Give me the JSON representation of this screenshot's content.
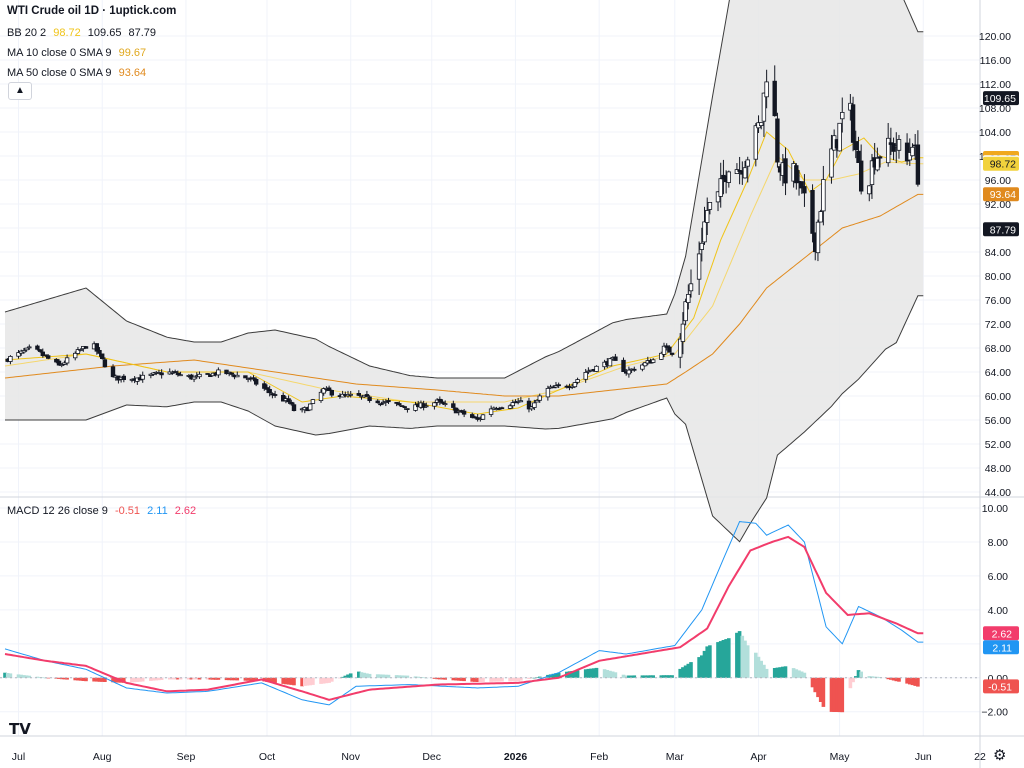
{
  "header": {
    "title": "WTI Crude oil  1D · 1uptick.com",
    "bb": {
      "label": "BB 20 2",
      "basis": "98.72",
      "upper": "109.65",
      "lower": "87.79"
    },
    "ma10": {
      "label": "MA 10 close 0 SMA 9",
      "value": "99.67"
    },
    "ma50": {
      "label": "MA 50 close 0 SMA 9",
      "value": "93.64"
    },
    "collapse_icon": "chevron-up-icon"
  },
  "macd_header": {
    "label": "MACD 12 26 close 9",
    "hist": "-0.51",
    "macd": "2.11",
    "signal": "2.62"
  },
  "colors": {
    "up": "#ffffff",
    "down": "#131722",
    "bb_fill": "#e6e6e6",
    "bb_line": "#3c3c3c",
    "ma10": "#f0c419",
    "ma50": "#e08a1e",
    "macd": "#2196f3",
    "signal": "#f23c6b",
    "hist_up_strong": "#26a69a",
    "hist_up_weak": "#b2dfdb",
    "hist_down_strong": "#ef5350",
    "hist_down_weak": "#ffcdd2"
  },
  "logo": "TV",
  "settings_icon": "gear-icon",
  "chart_data": [
    {
      "type": "candlestick",
      "title": "WTI Crude oil  1D · 1uptick.com",
      "ylim": [
        44,
        120
      ],
      "yticks": [
        "120.00",
        "116.00",
        "112.00",
        "108.00",
        "104.00",
        "100.00",
        "96.00",
        "92.00",
        "88.00",
        "84.00",
        "80.00",
        "76.00",
        "72.00",
        "68.00",
        "64.00",
        "60.00",
        "56.00",
        "52.00",
        "48.00",
        "44.00"
      ],
      "price_tags": [
        {
          "value": 109.65,
          "text": "109.65",
          "bg": "#131722",
          "fg": "#ffffff"
        },
        {
          "value": 99.67,
          "text": "99.67",
          "bg": "#f0a81e",
          "fg": "#131722"
        },
        {
          "value": 98.95,
          "text": "98.95",
          "bg": "#ffffff",
          "fg": "#131722"
        },
        {
          "value": 98.72,
          "text": "98.72",
          "bg": "#f2d23c",
          "fg": "#131722"
        },
        {
          "value": 93.64,
          "text": "93.64",
          "bg": "#e08a1e",
          "fg": "#ffffff"
        },
        {
          "value": 87.79,
          "text": "87.79",
          "bg": "#131722",
          "fg": "#ffffff"
        }
      ],
      "xticks": [
        {
          "label": "Jul",
          "day": 5
        },
        {
          "label": "Aug",
          "day": 36
        },
        {
          "label": "Sep",
          "day": 67
        },
        {
          "label": "Oct",
          "day": 97
        },
        {
          "label": "Nov",
          "day": 128
        },
        {
          "label": "Dec",
          "day": 158
        },
        {
          "label": "2026",
          "day": 189
        },
        {
          "label": "Feb",
          "day": 220
        },
        {
          "label": "Mar",
          "day": 248
        },
        {
          "label": "Apr",
          "day": 279
        },
        {
          "label": "May",
          "day": 309
        },
        {
          "label": "Jun",
          "day": 340
        },
        {
          "label": "22",
          "day": 361
        }
      ],
      "close_anchors": [
        [
          0,
          66
        ],
        [
          10,
          68
        ],
        [
          20,
          65
        ],
        [
          32,
          69
        ],
        [
          40,
          63
        ],
        [
          50,
          63
        ],
        [
          60,
          64
        ],
        [
          70,
          63
        ],
        [
          80,
          64
        ],
        [
          90,
          63
        ],
        [
          100,
          60
        ],
        [
          105,
          59
        ],
        [
          108,
          57
        ],
        [
          112,
          58
        ],
        [
          118,
          61
        ],
        [
          125,
          60
        ],
        [
          130,
          60
        ],
        [
          140,
          59
        ],
        [
          150,
          58
        ],
        [
          160,
          59
        ],
        [
          170,
          57
        ],
        [
          175,
          56
        ],
        [
          180,
          58
        ],
        [
          190,
          59
        ],
        [
          195,
          58
        ],
        [
          200,
          61
        ],
        [
          210,
          62
        ],
        [
          215,
          64
        ],
        [
          220,
          65
        ],
        [
          225,
          66
        ],
        [
          230,
          64
        ],
        [
          240,
          66
        ],
        [
          244,
          68
        ],
        [
          248,
          67
        ],
        [
          252,
          75
        ],
        [
          256,
          82
        ],
        [
          260,
          91
        ],
        [
          264,
          93
        ],
        [
          268,
          99
        ],
        [
          272,
          98
        ],
        [
          276,
          101
        ],
        [
          280,
          106
        ],
        [
          282,
          114
        ],
        [
          284,
          112
        ],
        [
          286,
          100
        ],
        [
          288,
          97
        ],
        [
          292,
          97
        ],
        [
          296,
          92
        ],
        [
          300,
          86
        ],
        [
          304,
          98
        ],
        [
          308,
          103
        ],
        [
          312,
          110
        ],
        [
          316,
          98
        ],
        [
          318,
          94
        ],
        [
          322,
          100
        ],
        [
          326,
          101
        ],
        [
          330,
          102
        ],
        [
          334,
          99
        ],
        [
          336,
          103
        ],
        [
          338,
          97
        ]
      ],
      "bb_mid_anchors": [
        [
          0,
          65
        ],
        [
          30,
          67
        ],
        [
          60,
          64
        ],
        [
          90,
          64
        ],
        [
          120,
          61
        ],
        [
          150,
          59
        ],
        [
          185,
          59
        ],
        [
          205,
          61
        ],
        [
          230,
          65
        ],
        [
          248,
          67
        ],
        [
          262,
          75
        ],
        [
          276,
          90
        ],
        [
          286,
          100
        ],
        [
          296,
          96
        ],
        [
          306,
          96
        ],
        [
          316,
          97
        ],
        [
          326,
          99
        ],
        [
          338,
          98.7
        ]
      ],
      "bb_width_anchors": [
        [
          0,
          9
        ],
        [
          30,
          11
        ],
        [
          45,
          7
        ],
        [
          70,
          5
        ],
        [
          80,
          5
        ],
        [
          100,
          8
        ],
        [
          115,
          8
        ],
        [
          135,
          5
        ],
        [
          160,
          4
        ],
        [
          185,
          4
        ],
        [
          200,
          6
        ],
        [
          225,
          8
        ],
        [
          245,
          7
        ],
        [
          252,
          14
        ],
        [
          262,
          35
        ],
        [
          272,
          50
        ],
        [
          282,
          53
        ],
        [
          296,
          42
        ],
        [
          310,
          36
        ],
        [
          320,
          33
        ],
        [
          330,
          30
        ],
        [
          338,
          22
        ]
      ],
      "ma10_anchors": [
        [
          0,
          66
        ],
        [
          30,
          67
        ],
        [
          60,
          64
        ],
        [
          90,
          64
        ],
        [
          110,
          59
        ],
        [
          125,
          60
        ],
        [
          150,
          59
        ],
        [
          175,
          57
        ],
        [
          190,
          58
        ],
        [
          205,
          61
        ],
        [
          225,
          65
        ],
        [
          245,
          67
        ],
        [
          255,
          73
        ],
        [
          265,
          86
        ],
        [
          275,
          96
        ],
        [
          282,
          104
        ],
        [
          290,
          101
        ],
        [
          298,
          94
        ],
        [
          304,
          96
        ],
        [
          310,
          101
        ],
        [
          318,
          103
        ],
        [
          324,
          100
        ],
        [
          332,
          99
        ],
        [
          338,
          99.7
        ]
      ],
      "ma50_anchors": [
        [
          0,
          63
        ],
        [
          40,
          65
        ],
        [
          70,
          66
        ],
        [
          100,
          64
        ],
        [
          130,
          62
        ],
        [
          160,
          61
        ],
        [
          185,
          60
        ],
        [
          205,
          60
        ],
        [
          225,
          61
        ],
        [
          245,
          62
        ],
        [
          252,
          64
        ],
        [
          262,
          67
        ],
        [
          272,
          72
        ],
        [
          282,
          78
        ],
        [
          296,
          83
        ],
        [
          310,
          88
        ],
        [
          324,
          90
        ],
        [
          338,
          93.6
        ]
      ]
    },
    {
      "type": "macd",
      "title": "MACD 12 26 close 9",
      "ylim": [
        -2.9,
        10.0
      ],
      "yticks": [
        "10.00",
        "8.00",
        "6.00",
        "4.00",
        "2.00",
        "0.00",
        "−2.00"
      ],
      "macd_anchors": [
        [
          0,
          1.7
        ],
        [
          15,
          1.0
        ],
        [
          30,
          0.5
        ],
        [
          45,
          -0.6
        ],
        [
          60,
          -0.9
        ],
        [
          75,
          -0.8
        ],
        [
          95,
          -0.3
        ],
        [
          110,
          -1.3
        ],
        [
          120,
          -1.6
        ],
        [
          130,
          -0.5
        ],
        [
          150,
          -0.4
        ],
        [
          175,
          -0.6
        ],
        [
          190,
          -0.5
        ],
        [
          205,
          0.3
        ],
        [
          220,
          1.6
        ],
        [
          230,
          1.4
        ],
        [
          248,
          1.9
        ],
        [
          258,
          4.0
        ],
        [
          266,
          7.0
        ],
        [
          272,
          9.2
        ],
        [
          278,
          9.1
        ],
        [
          282,
          8.4
        ],
        [
          290,
          9.0
        ],
        [
          296,
          8.0
        ],
        [
          304,
          3.0
        ],
        [
          310,
          2.0
        ],
        [
          316,
          4.2
        ],
        [
          324,
          3.6
        ],
        [
          332,
          2.8
        ],
        [
          338,
          2.1
        ]
      ],
      "signal_anchors": [
        [
          0,
          1.4
        ],
        [
          15,
          1.0
        ],
        [
          30,
          0.7
        ],
        [
          45,
          -0.3
        ],
        [
          60,
          -0.8
        ],
        [
          75,
          -0.7
        ],
        [
          95,
          -0.1
        ],
        [
          110,
          -0.8
        ],
        [
          120,
          -1.3
        ],
        [
          135,
          -0.7
        ],
        [
          160,
          -0.4
        ],
        [
          190,
          -0.3
        ],
        [
          205,
          0.0
        ],
        [
          220,
          1.0
        ],
        [
          235,
          1.4
        ],
        [
          250,
          1.8
        ],
        [
          260,
          2.9
        ],
        [
          268,
          5.4
        ],
        [
          276,
          7.5
        ],
        [
          284,
          8.0
        ],
        [
          290,
          8.3
        ],
        [
          296,
          7.7
        ],
        [
          304,
          5.0
        ],
        [
          312,
          3.7
        ],
        [
          320,
          3.8
        ],
        [
          330,
          3.2
        ],
        [
          338,
          2.62
        ]
      ],
      "last_values": {
        "macd": 2.11,
        "signal": 2.62,
        "hist": -0.51
      }
    }
  ]
}
